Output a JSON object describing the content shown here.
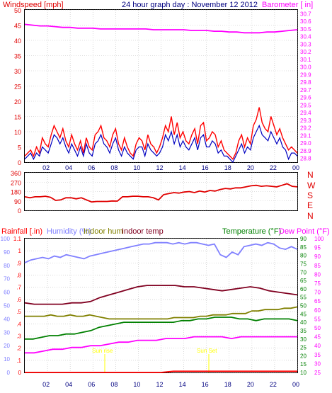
{
  "colors": {
    "wind": "#e00000",
    "gust": "#ff0000",
    "avg": "#0000c0",
    "baro": "#ff00ff",
    "dir": "#e00000",
    "humidity": "#8080ff",
    "indoor_hum": "#808000",
    "indoor_temp": "#800020",
    "temperature": "#008000",
    "dewpoint": "#ff00ff",
    "rain_axis": "#ff0000",
    "title": "#000080",
    "grid": "#c0c0c0",
    "annotation": "#ffff00"
  },
  "top": {
    "title": "24 hour graph day : November 12 2012",
    "left_label": "Windspeed [mph]",
    "right_label": "Barometer [ in]"
  },
  "middle": {
    "directions": [
      "N",
      "W",
      "S",
      "E",
      "N"
    ]
  },
  "bottom": {
    "labels": {
      "rainfall": "Rainfall [.in)",
      "humidity": "Humidity (%)",
      "indoor_hum": "Indoor hum",
      "indoor_temp": "Indoor temp",
      "temperature": "Temperature (°F)",
      "dewpoint": "Dew Point (°F)"
    },
    "annotations": {
      "sunrise": "Sun rise",
      "sunset": "Sun Set"
    }
  },
  "chart_data": [
    {
      "type": "line",
      "title": "24 hour graph day : November 12 2012",
      "x_ticks": [
        "02",
        "04",
        "06",
        "08",
        "10",
        "12",
        "14",
        "16",
        "18",
        "20",
        "22",
        "00"
      ],
      "y_left": {
        "label": "Windspeed [mph]",
        "range": [
          0,
          50
        ],
        "ticks": [
          0,
          5,
          10,
          15,
          20,
          25,
          30,
          35,
          40,
          45,
          50
        ]
      },
      "y_right": {
        "label": "Barometer [ in]",
        "range": [
          28.75,
          30.75
        ],
        "ticks": [
          28.8,
          28.9,
          29.0,
          29.1,
          29.2,
          29.3,
          29.4,
          29.5,
          29.6,
          29.7,
          29.8,
          29.9,
          30.0,
          30.1,
          30.2,
          30.3,
          30.4,
          30.5,
          30.6,
          30.7
        ]
      },
      "grid": true,
      "series": [
        {
          "axis": "left",
          "values": [
            2,
            3,
            4,
            2,
            5,
            3,
            8,
            6,
            5,
            9,
            12,
            10,
            8,
            11,
            7,
            5,
            9,
            6,
            4,
            7,
            3,
            8,
            5,
            4,
            9,
            10,
            12,
            8,
            7,
            5,
            9,
            11,
            6,
            4,
            8,
            5,
            3,
            2,
            6,
            8,
            7,
            4,
            9,
            6,
            5,
            3,
            5,
            8,
            12,
            10,
            15,
            9,
            13,
            8,
            10,
            7,
            6,
            9,
            11,
            6,
            12,
            13,
            7,
            8,
            10,
            9,
            5,
            7,
            4,
            3,
            2,
            1,
            3,
            7,
            9,
            5,
            8,
            6,
            12,
            14,
            18,
            13,
            11,
            10,
            15,
            12,
            9,
            11,
            8,
            6,
            4,
            5,
            4,
            3
          ]
        },
        {
          "axis": "left",
          "values": [
            1,
            2,
            3,
            1,
            3,
            2,
            5,
            4,
            3,
            6,
            9,
            8,
            6,
            8,
            5,
            3,
            6,
            4,
            2,
            5,
            2,
            6,
            3,
            2,
            6,
            7,
            9,
            6,
            5,
            3,
            6,
            8,
            4,
            2,
            5,
            3,
            2,
            1,
            4,
            5,
            5,
            2,
            6,
            4,
            3,
            2,
            3,
            5,
            9,
            7,
            10,
            6,
            9,
            5,
            7,
            5,
            4,
            6,
            8,
            4,
            8,
            9,
            5,
            5,
            7,
            6,
            3,
            4,
            2,
            2,
            1,
            0,
            2,
            4,
            6,
            3,
            5,
            4,
            8,
            10,
            12,
            9,
            8,
            7,
            10,
            8,
            6,
            8,
            5,
            4,
            1,
            3,
            3,
            2
          ]
        },
        {
          "axis": "right",
          "values": [
            30.56,
            30.55,
            30.54,
            30.54,
            30.53,
            30.52,
            30.52,
            30.51,
            30.51,
            30.51,
            30.5,
            30.5,
            30.5,
            30.5,
            30.5,
            30.5,
            30.5,
            30.49,
            30.49,
            30.49,
            30.49,
            30.49,
            30.48,
            30.48,
            30.48,
            30.47,
            30.47,
            30.46,
            30.46,
            30.45,
            30.45,
            30.45,
            30.46,
            30.46,
            30.47,
            30.48,
            30.49
          ]
        }
      ]
    },
    {
      "type": "line",
      "y_left": {
        "range": [
          0,
          360
        ],
        "ticks": [
          0,
          90,
          180,
          270,
          360
        ]
      },
      "y_right": {
        "ticks": [
          "N",
          "W",
          "S",
          "E",
          "N"
        ]
      },
      "grid": true,
      "series": [
        {
          "values": [
            130,
            120,
            130,
            130,
            135,
            125,
            95,
            100,
            120,
            120,
            110,
            120,
            100,
            80,
            85,
            85,
            85,
            90,
            88,
            130,
            130,
            135,
            135,
            130,
            130,
            120,
            100,
            150,
            160,
            170,
            165,
            175,
            180,
            170,
            185,
            175,
            190,
            185,
            200,
            210,
            205,
            215,
            215,
            225,
            235,
            240,
            230,
            235,
            230,
            225,
            240,
            255,
            230,
            225
          ]
        }
      ]
    },
    {
      "type": "line",
      "x_ticks": [
        "02",
        "04",
        "06",
        "08",
        "10",
        "12",
        "14",
        "16",
        "18",
        "20",
        "22",
        "00"
      ],
      "y_axes": {
        "rainfall": {
          "label": "Rainfall [.in)",
          "range": [
            0,
            1.1
          ],
          "ticks": [
            0,
            0.1,
            0.2,
            0.3,
            0.4,
            0.5,
            0.6,
            0.7,
            0.8,
            0.9,
            1.0,
            1.1
          ]
        },
        "humidity": {
          "label": "Humidity (%)",
          "range": [
            0,
            100
          ],
          "ticks": [
            0,
            10,
            20,
            30,
            40,
            50,
            60,
            70,
            80,
            90,
            100
          ]
        },
        "temperature": {
          "label": "Temperature (°F)",
          "range": [
            10,
            90
          ],
          "ticks": [
            10,
            15,
            20,
            25,
            30,
            35,
            40,
            45,
            50,
            55,
            60,
            65,
            70,
            75,
            80,
            85,
            90
          ]
        },
        "dewpoint": {
          "label": "Dew Point (°F)",
          "range": [
            25,
            100
          ],
          "ticks": [
            25,
            30,
            35,
            40,
            45,
            50,
            55,
            60,
            65,
            70,
            75,
            80,
            85,
            90,
            95,
            100
          ]
        }
      },
      "grid": true,
      "series": [
        {
          "axis": "humidity",
          "values": [
            82,
            84,
            85,
            86,
            85,
            87,
            86,
            88,
            87,
            86,
            85,
            87,
            88,
            89,
            90,
            91,
            92,
            93,
            94,
            95,
            96,
            96,
            97,
            97,
            97,
            96,
            97,
            96,
            97,
            97,
            96,
            95,
            96,
            88,
            86,
            90,
            88,
            94,
            95,
            96,
            95,
            97,
            96,
            93,
            92,
            94,
            92
          ]
        },
        {
          "axis": "humidity",
          "values": [
            42,
            42,
            42,
            42,
            43,
            42,
            42,
            43,
            42,
            42,
            43,
            42,
            41,
            40,
            40,
            40,
            40,
            40,
            40,
            40,
            40,
            40,
            40,
            41,
            41,
            41,
            41,
            42,
            42,
            43,
            43,
            43,
            44,
            44,
            44,
            46,
            46,
            47,
            47,
            47,
            48,
            48,
            49
          ]
        },
        {
          "axis": "humidity",
          "values": [
            52,
            51,
            51,
            51,
            51,
            52,
            52,
            53,
            56,
            58,
            60,
            62,
            64,
            65,
            65,
            65,
            65,
            64,
            64,
            63,
            62,
            61,
            62,
            63,
            64,
            63,
            61,
            60,
            59,
            58
          ]
        },
        {
          "axis": "temperature",
          "values": [
            30,
            30,
            31,
            32,
            32,
            33,
            33,
            34,
            35,
            37,
            38,
            39,
            40,
            40,
            40,
            40,
            40,
            40,
            40,
            41,
            41,
            42,
            42,
            43,
            43,
            43,
            42,
            42,
            41,
            42,
            42,
            42,
            42,
            41
          ]
        },
        {
          "axis": "dewpoint",
          "values": [
            36,
            36,
            37,
            38,
            38,
            39,
            39,
            40,
            40,
            41,
            42,
            42,
            43,
            43,
            43,
            44,
            44,
            44,
            45,
            45,
            45,
            45,
            44,
            45,
            45,
            45,
            45,
            45,
            45,
            45
          ]
        },
        {
          "axis": "rainfall",
          "values": [
            0,
            0,
            0,
            0,
            0,
            0,
            0,
            0,
            0,
            0,
            0,
            0,
            0.01,
            0.01,
            0.01,
            0.01,
            0.01,
            0.01,
            0.01,
            0.01,
            0.01,
            0.01,
            0.01
          ]
        }
      ]
    }
  ]
}
